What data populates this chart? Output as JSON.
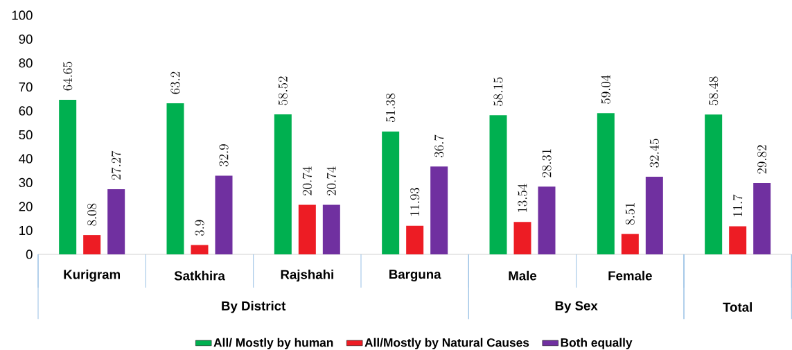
{
  "chart_data": {
    "type": "bar",
    "categories": [
      "Kurigram",
      "Satkhira",
      "Rajshahi",
      "Barguna",
      "Male",
      "Female",
      null
    ],
    "annotations": [
      "By District",
      "By Sex",
      "Total"
    ],
    "series": [
      {
        "name": "All/ Mostly by human",
        "color": "#00b050",
        "values": [
          64.65,
          63.2,
          58.52,
          51.38,
          58.15,
          59.04,
          58.48
        ]
      },
      {
        "name": "All/Mostly by Natural Causes",
        "color": "#ed1c24",
        "values": [
          8.08,
          3.9,
          20.74,
          11.93,
          13.54,
          8.51,
          11.7
        ]
      },
      {
        "name": "Both equally",
        "color": "#7030a0",
        "values": [
          27.27,
          32.9,
          20.74,
          36.7,
          28.31,
          32.45,
          29.82
        ]
      }
    ],
    "ylim": [
      0,
      100
    ],
    "yticks": [
      0,
      10,
      20,
      30,
      40,
      50,
      60,
      70,
      80,
      90,
      100
    ],
    "data_labels": true,
    "legend": "bottom"
  }
}
